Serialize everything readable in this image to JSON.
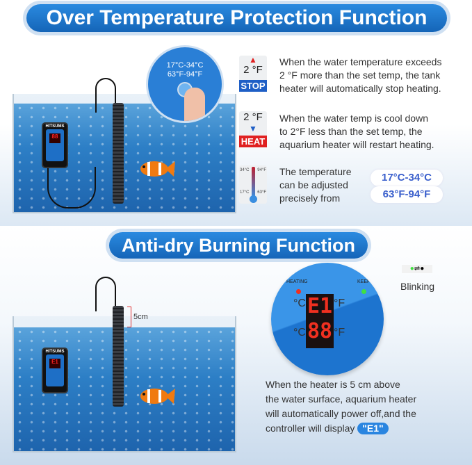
{
  "sections": {
    "over_temp": {
      "title": "Over Temperature Protection Function",
      "zoom_label_c": "17°C-34°C",
      "zoom_label_f": "63°F-94°F",
      "items": [
        {
          "icon": "arrow-up-icon",
          "value": "2 °F",
          "tag": "STOP",
          "tag_color": "#1f5fc6",
          "text": [
            "When the water temperature exceeds",
            "2 °F more than the set temp, the tank",
            "heater will automatically stop heating."
          ]
        },
        {
          "icon": "arrow-down-icon",
          "value": "2 °F",
          "tag": "HEAT",
          "tag_color": "#e02020",
          "text": [
            "When the water temp is cool down",
            "to 2°F less than the set temp, the",
            "aquarium heater will restart heating."
          ]
        }
      ],
      "thermo": {
        "c_high": "34°C",
        "f_high": "94°F",
        "c_low": "17°C",
        "f_low": "63°F"
      },
      "adjust_text": [
        "The temperature",
        "can be adjusted",
        "precisely from"
      ],
      "range_c": "17°C-34°C",
      "range_f": "63°F-94°F"
    },
    "anti_dry": {
      "title": "Anti-dry Burning Function",
      "height_label": "5cm",
      "display": {
        "heating": "HEATING",
        "keep": "KEEP",
        "c1": "°C",
        "f1": "°F",
        "c2": "°C",
        "f2": "°F",
        "line1": "E1",
        "line2": "88"
      },
      "blinking": "Blinking",
      "text": [
        "When the heater is 5 cm above",
        "the water surface, aquarium heater",
        "will automatically power off,and the",
        "controller will display"
      ],
      "e1_badge": "\"E1\""
    }
  },
  "controller_brand": "HITSUMS",
  "colors": {
    "banner": "#1a6fc4",
    "stop": "#1f5fc6",
    "heat": "#e02020",
    "display_red": "#f03020"
  }
}
